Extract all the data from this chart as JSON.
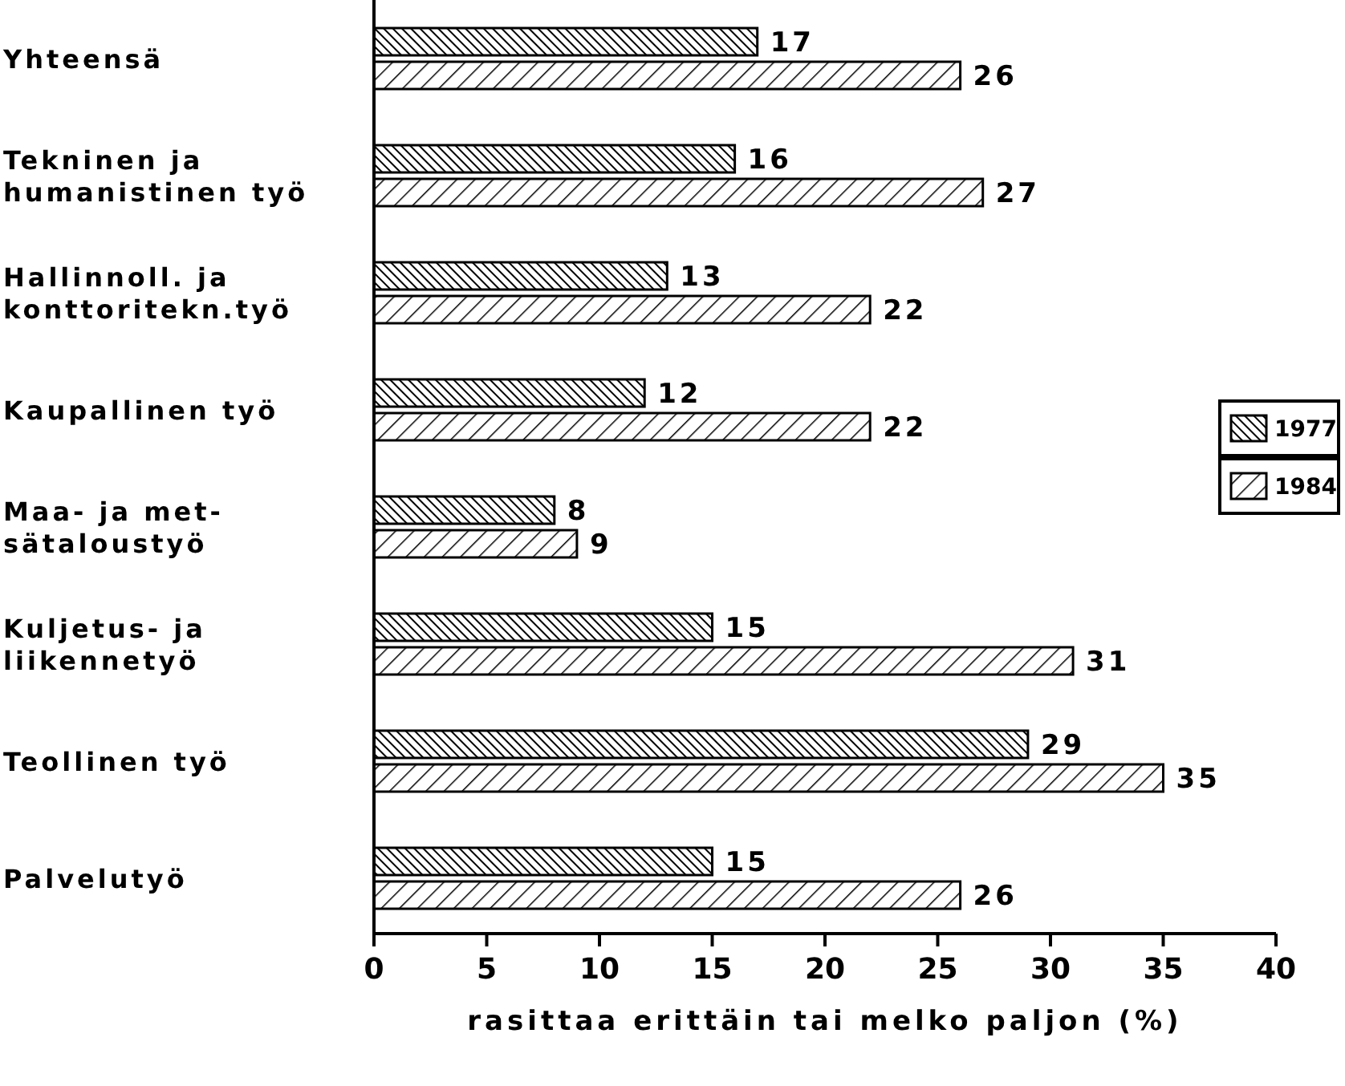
{
  "chart_data": {
    "type": "bar",
    "orientation": "horizontal",
    "xlabel": "rasittaa erittäin tai melko paljon (%)",
    "categories": [
      "Yhteensä",
      "Tekninen ja\nhumanistinen työ",
      "Hallinnoll. ja\nkonttoritekn.työ",
      "Kaupallinen työ",
      "Maa- ja met-\nsätaloustyö",
      "Kuljetus- ja\nliikennetyö",
      "Teollinen työ",
      "Palvelutyö"
    ],
    "series": [
      {
        "name": "1977",
        "color": "#000000",
        "values": [
          17,
          16,
          13,
          12,
          8,
          15,
          29,
          15
        ]
      },
      {
        "name": "1984",
        "color": "#000000",
        "values": [
          26,
          27,
          22,
          22,
          9,
          31,
          35,
          26
        ]
      }
    ],
    "xlim": [
      0,
      40
    ],
    "xticks": [
      0,
      5,
      10,
      15,
      20,
      25,
      30,
      35,
      40
    ],
    "data_labels": true,
    "legend": "right",
    "grid": false
  }
}
